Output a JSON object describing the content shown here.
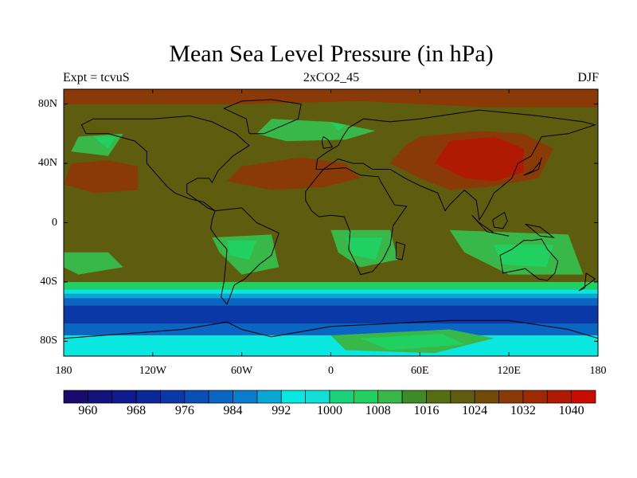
{
  "title": "Mean Sea Level Pressure (in hPa)",
  "subtitle_left": "Expt = tcvuS",
  "subtitle_center": "2xCO2_45",
  "subtitle_right": "DJF",
  "lat_labels": [
    "80N",
    "40N",
    "0",
    "40S",
    "80S"
  ],
  "lon_labels": [
    "180",
    "120W",
    "60W",
    "0",
    "60E",
    "120E",
    "180"
  ],
  "colorbar": {
    "labels": [
      "960",
      "968",
      "976",
      "984",
      "992",
      "1000",
      "1008",
      "1016",
      "1024",
      "1032",
      "1040"
    ],
    "colors": [
      "#1a0a6b",
      "#14137e",
      "#0f1a8c",
      "#0b2898",
      "#0a38a6",
      "#0a4fb4",
      "#0a66c2",
      "#0a7ccc",
      "#0aa6d6",
      "#0ae6e0",
      "#10e0d8",
      "#1ad27a",
      "#20d060",
      "#39b84a",
      "#3f8a28",
      "#566d12",
      "#5e5c0e",
      "#734b08",
      "#8a3a06",
      "#9e2a04",
      "#b01a02",
      "#c80c00"
    ]
  },
  "colors": {
    "high_red": "#b01a02",
    "brown_red": "#8a3a06",
    "olive": "#5e5c0e",
    "green": "#39b84a",
    "light_green": "#20d060",
    "cyan": "#0ae6e0",
    "blue": "#0a66c2",
    "dark_blue": "#0a38a6",
    "coast": "#000000"
  }
}
